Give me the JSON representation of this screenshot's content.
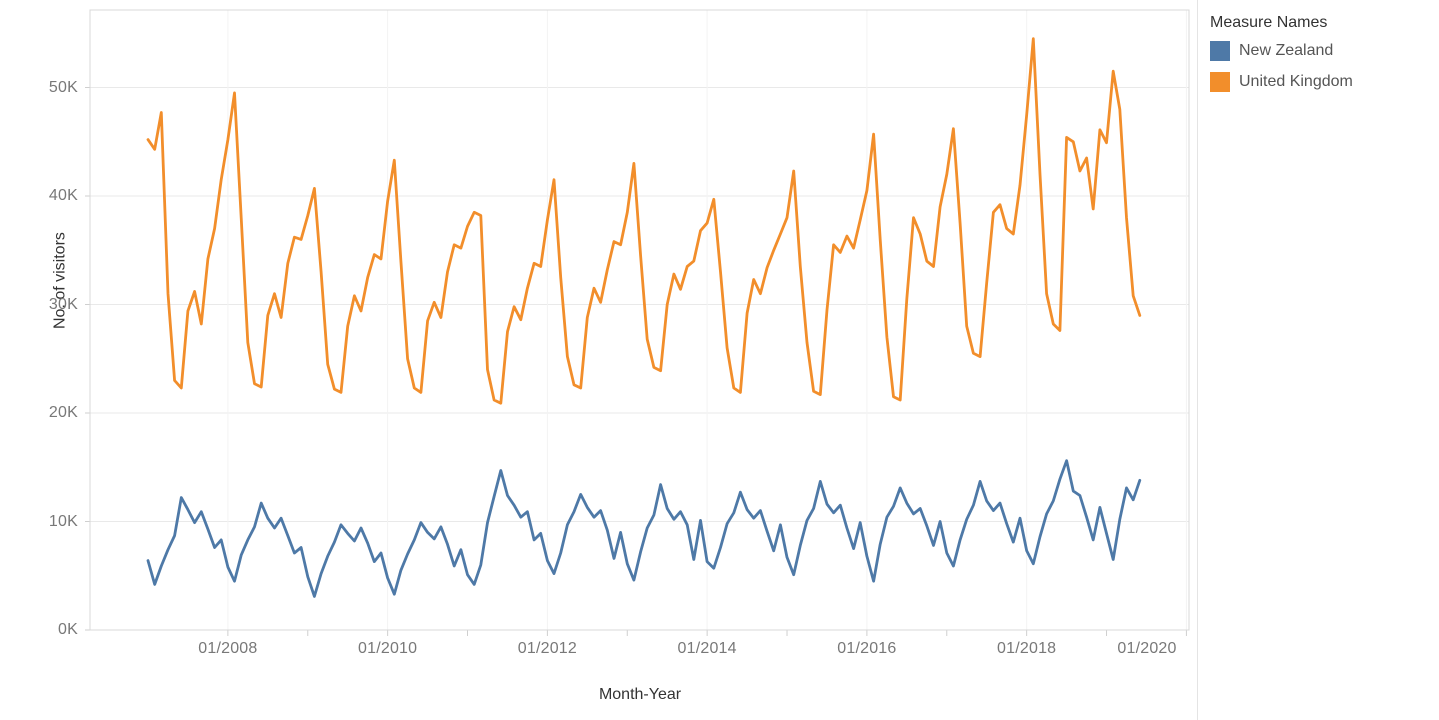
{
  "chart_data": {
    "type": "line",
    "title": "",
    "xlabel": "Month-Year",
    "ylabel": "No. of visitors",
    "x_start": "2007-01",
    "x_end": "2019-06",
    "frequency": "monthly",
    "x_tick_labels": [
      "01/2008",
      "01/2010",
      "01/2012",
      "01/2014",
      "01/2016",
      "01/2018",
      "01/2020"
    ],
    "y_tick_labels": [
      "0K",
      "10K",
      "20K",
      "30K",
      "40K",
      "50K"
    ],
    "y_unit": "thousands of visitors",
    "ylim_k": [
      0,
      57
    ],
    "grid": "horizontal-major",
    "legend_title": "Measure Names",
    "legend_position": "top-right",
    "series": [
      {
        "name": "New Zealand",
        "color": "#4e79a7",
        "values_k": [
          6.4,
          4.2,
          5.9,
          7.4,
          8.7,
          12.2,
          11.1,
          9.9,
          10.9,
          9.3,
          7.6,
          8.3,
          5.8,
          4.5,
          6.9,
          8.3,
          9.5,
          11.7,
          10.3,
          9.4,
          10.3,
          8.7,
          7.1,
          7.6,
          4.9,
          3.1,
          5.2,
          6.8,
          8.1,
          9.7,
          8.9,
          8.2,
          9.4,
          8.0,
          6.3,
          7.1,
          4.8,
          3.3,
          5.5,
          7.0,
          8.3,
          9.9,
          9.0,
          8.4,
          9.5,
          7.9,
          5.9,
          7.4,
          5.1,
          4.2,
          6.0,
          9.9,
          12.3,
          14.7,
          12.4,
          11.5,
          10.4,
          10.9,
          8.3,
          8.9,
          6.4,
          5.2,
          7.1,
          9.7,
          10.9,
          12.5,
          11.3,
          10.4,
          11.0,
          9.2,
          6.6,
          9.0,
          6.1,
          4.6,
          7.2,
          9.4,
          10.6,
          13.4,
          11.2,
          10.2,
          10.9,
          9.7,
          6.5,
          10.1,
          6.3,
          5.7,
          7.6,
          9.8,
          10.8,
          12.7,
          11.1,
          10.3,
          11.0,
          9.1,
          7.3,
          9.7,
          6.7,
          5.1,
          7.8,
          10.1,
          11.2,
          13.7,
          11.6,
          10.8,
          11.5,
          9.4,
          7.5,
          9.9,
          6.8,
          4.5,
          7.9,
          10.4,
          11.4,
          13.1,
          11.7,
          10.7,
          11.2,
          9.6,
          7.8,
          10.0,
          7.1,
          5.9,
          8.3,
          10.2,
          11.5,
          13.7,
          11.9,
          11.0,
          11.7,
          9.8,
          8.1,
          10.3,
          7.3,
          6.1,
          8.6,
          10.7,
          11.9,
          13.9,
          15.6,
          12.8,
          12.4,
          10.4,
          8.3,
          11.3,
          8.9,
          6.5,
          10.2,
          13.1,
          12.0,
          13.8
        ]
      },
      {
        "name": "United Kingdom",
        "color": "#f28e2b",
        "values_k": [
          45.2,
          44.3,
          47.7,
          31.0,
          23.0,
          22.3,
          29.4,
          31.2,
          28.2,
          34.2,
          37.0,
          41.5,
          45.2,
          49.5,
          38.0,
          26.5,
          22.7,
          22.4,
          29.0,
          31.0,
          28.8,
          33.8,
          36.2,
          36.0,
          38.2,
          40.7,
          33.0,
          24.5,
          22.2,
          21.9,
          28.0,
          30.8,
          29.4,
          32.5,
          34.6,
          34.2,
          39.5,
          43.3,
          34.0,
          25.0,
          22.3,
          21.9,
          28.5,
          30.2,
          28.8,
          33.0,
          35.5,
          35.2,
          37.2,
          38.5,
          38.2,
          24.0,
          21.2,
          20.9,
          27.5,
          29.8,
          28.6,
          31.5,
          33.8,
          33.5,
          37.8,
          41.5,
          32.5,
          25.2,
          22.6,
          22.3,
          28.8,
          31.5,
          30.2,
          33.2,
          35.8,
          35.5,
          38.5,
          43.0,
          34.5,
          26.8,
          24.2,
          23.9,
          30.0,
          32.8,
          31.4,
          33.5,
          34.0,
          36.8,
          37.5,
          39.7,
          33.0,
          26.0,
          22.3,
          21.9,
          29.2,
          32.3,
          31.0,
          33.4,
          35.0,
          36.5,
          38.0,
          42.3,
          33.5,
          26.5,
          22.0,
          21.7,
          29.5,
          35.5,
          34.8,
          36.3,
          35.2,
          37.8,
          40.5,
          45.7,
          36.0,
          27.0,
          21.5,
          21.2,
          30.5,
          38.0,
          36.5,
          34.0,
          33.5,
          39.0,
          42.0,
          46.2,
          37.5,
          28.0,
          25.5,
          25.2,
          32.0,
          38.5,
          39.2,
          37.0,
          36.5,
          41.0,
          47.5,
          54.5,
          42.0,
          31.0,
          28.2,
          27.6,
          45.4,
          45.0,
          42.3,
          43.5,
          38.8,
          46.1,
          44.9,
          51.5,
          48.0,
          38.0,
          30.8,
          29.0
        ]
      }
    ]
  },
  "colors": {
    "axis_text": "#787878",
    "title_text": "#333333",
    "gridline": "#e9e9e9",
    "vgridline": "#f3f3f3",
    "border": "#d8d8d8",
    "tick": "#cfcfcf",
    "divider": "#e4e4e4",
    "background": "#ffffff"
  }
}
